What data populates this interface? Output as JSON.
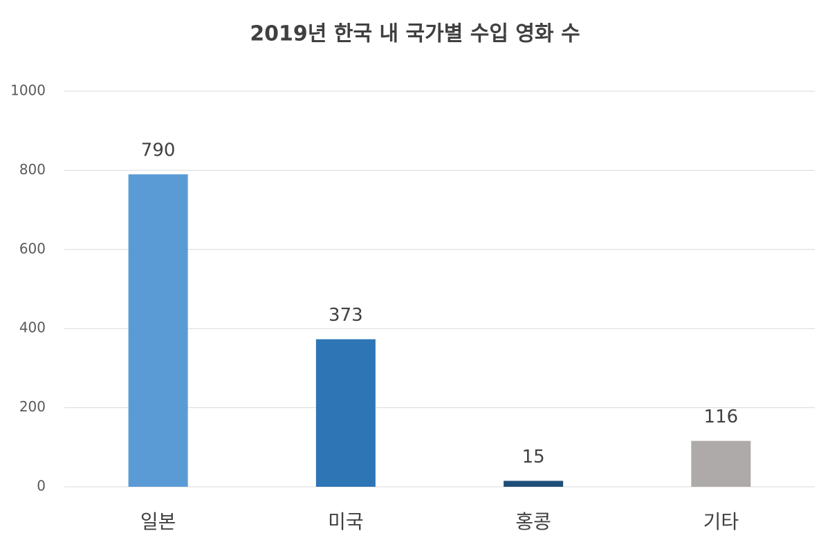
{
  "chart_data": {
    "type": "bar",
    "title": "2019년 한국 내 국가별 수입 영화 수",
    "categories": [
      "일본",
      "미국",
      "홍콩",
      "기타"
    ],
    "values": [
      790,
      373,
      15,
      116
    ],
    "colors": [
      "#5b9bd5",
      "#2e75b6",
      "#1f4e79",
      "#aeaaaa"
    ],
    "ylim": [
      0,
      1000
    ],
    "yticks": [
      0,
      200,
      400,
      600,
      800,
      1000
    ],
    "grid": true
  }
}
